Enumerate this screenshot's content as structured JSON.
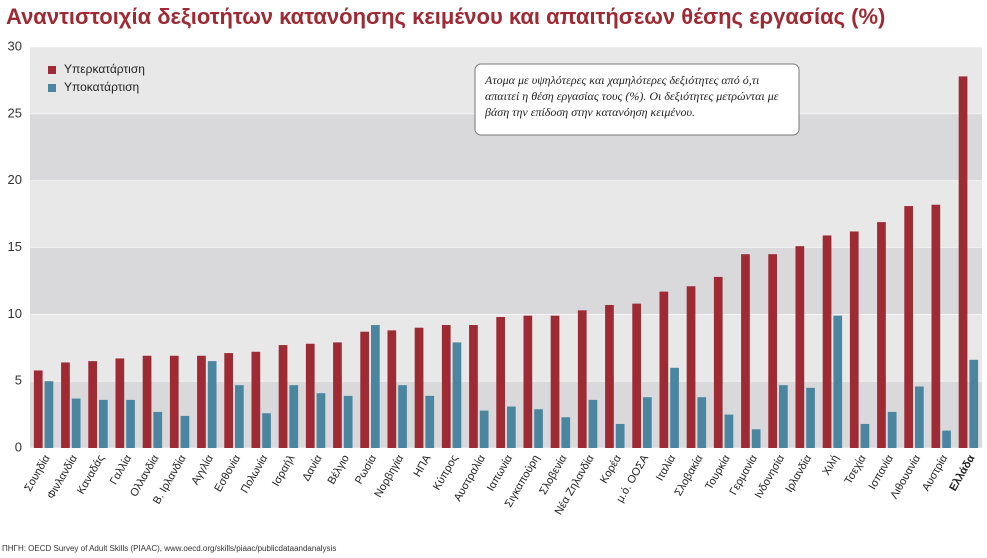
{
  "chart_data": {
    "type": "bar",
    "title": "Αναντιστοιχία δεξιοτήτων κατανόησης κειμένου και απαιτήσεων θέσης εργασίας (%)",
    "annotation": "Ατομα με υψηλότερες και χαμηλότερες δεξιότητες από ό,τι απαιτεί η θέση εργασίας τους (%). Οι δεξιότητες μετρώνται με βάση την επίδοση στην κατανόηση κειμένου.",
    "source": "ΠΗΓΗ: OECD Survey of Adult Skills (PIAAC), www.oecd.org/skills/piaac/publicdataandanalysis",
    "categories": [
      "Σουηδία",
      "Φινλανδία",
      "Καναδάς",
      "Γαλλία",
      "Ολλανδία",
      "Β. Ιρλανδία",
      "Αγγλία",
      "Εσθονία",
      "Πολωνία",
      "Ισραήλ",
      "Δανία",
      "Βέλγιο",
      "Ρωσία",
      "Νορβηγία",
      "ΗΠΑ",
      "Κύπρος",
      "Αυστραλία",
      "Ιαπωνία",
      "Σιγκαπούρη",
      "Σλοβενία",
      "Νέα Ζηλανδία",
      "Κορέα",
      "μ.ό. ΟΟΣΑ",
      "Ιταλία",
      "Σλοβακία",
      "Τουρκία",
      "Γερμανία",
      "Ινδονησία",
      "Ιρλανδία",
      "Χιλή",
      "Τσεχία",
      "Ισπανία",
      "Λιθουανία",
      "Αυστρία",
      "Ελλάδα"
    ],
    "highlight_index": 34,
    "series": [
      {
        "name": "Υπερκατάρτιση",
        "color": "#9e2a34",
        "values": [
          5.8,
          6.4,
          6.5,
          6.7,
          6.9,
          6.9,
          6.9,
          7.1,
          7.2,
          7.7,
          7.8,
          7.9,
          8.7,
          8.8,
          9.0,
          9.2,
          9.2,
          9.8,
          9.9,
          9.9,
          10.3,
          10.7,
          10.8,
          11.7,
          12.1,
          12.8,
          14.5,
          14.5,
          15.1,
          15.9,
          16.2,
          16.9,
          18.1,
          18.2,
          27.8
        ]
      },
      {
        "name": "Υποκατάρτιση",
        "color": "#4a86a0",
        "values": [
          5.0,
          3.7,
          3.6,
          3.6,
          2.7,
          2.4,
          6.5,
          4.7,
          2.6,
          4.7,
          4.1,
          3.9,
          9.2,
          4.7,
          3.9,
          7.9,
          2.8,
          3.1,
          2.9,
          2.3,
          3.6,
          1.8,
          3.8,
          6.0,
          3.8,
          2.5,
          1.4,
          4.7,
          4.5,
          9.9,
          1.8,
          2.7,
          4.6,
          1.3,
          6.6
        ]
      }
    ],
    "ylim": [
      0,
      30
    ],
    "yticks": [
      0,
      5,
      10,
      15,
      20,
      25,
      30
    ],
    "grid": true,
    "legend": "top-left"
  }
}
